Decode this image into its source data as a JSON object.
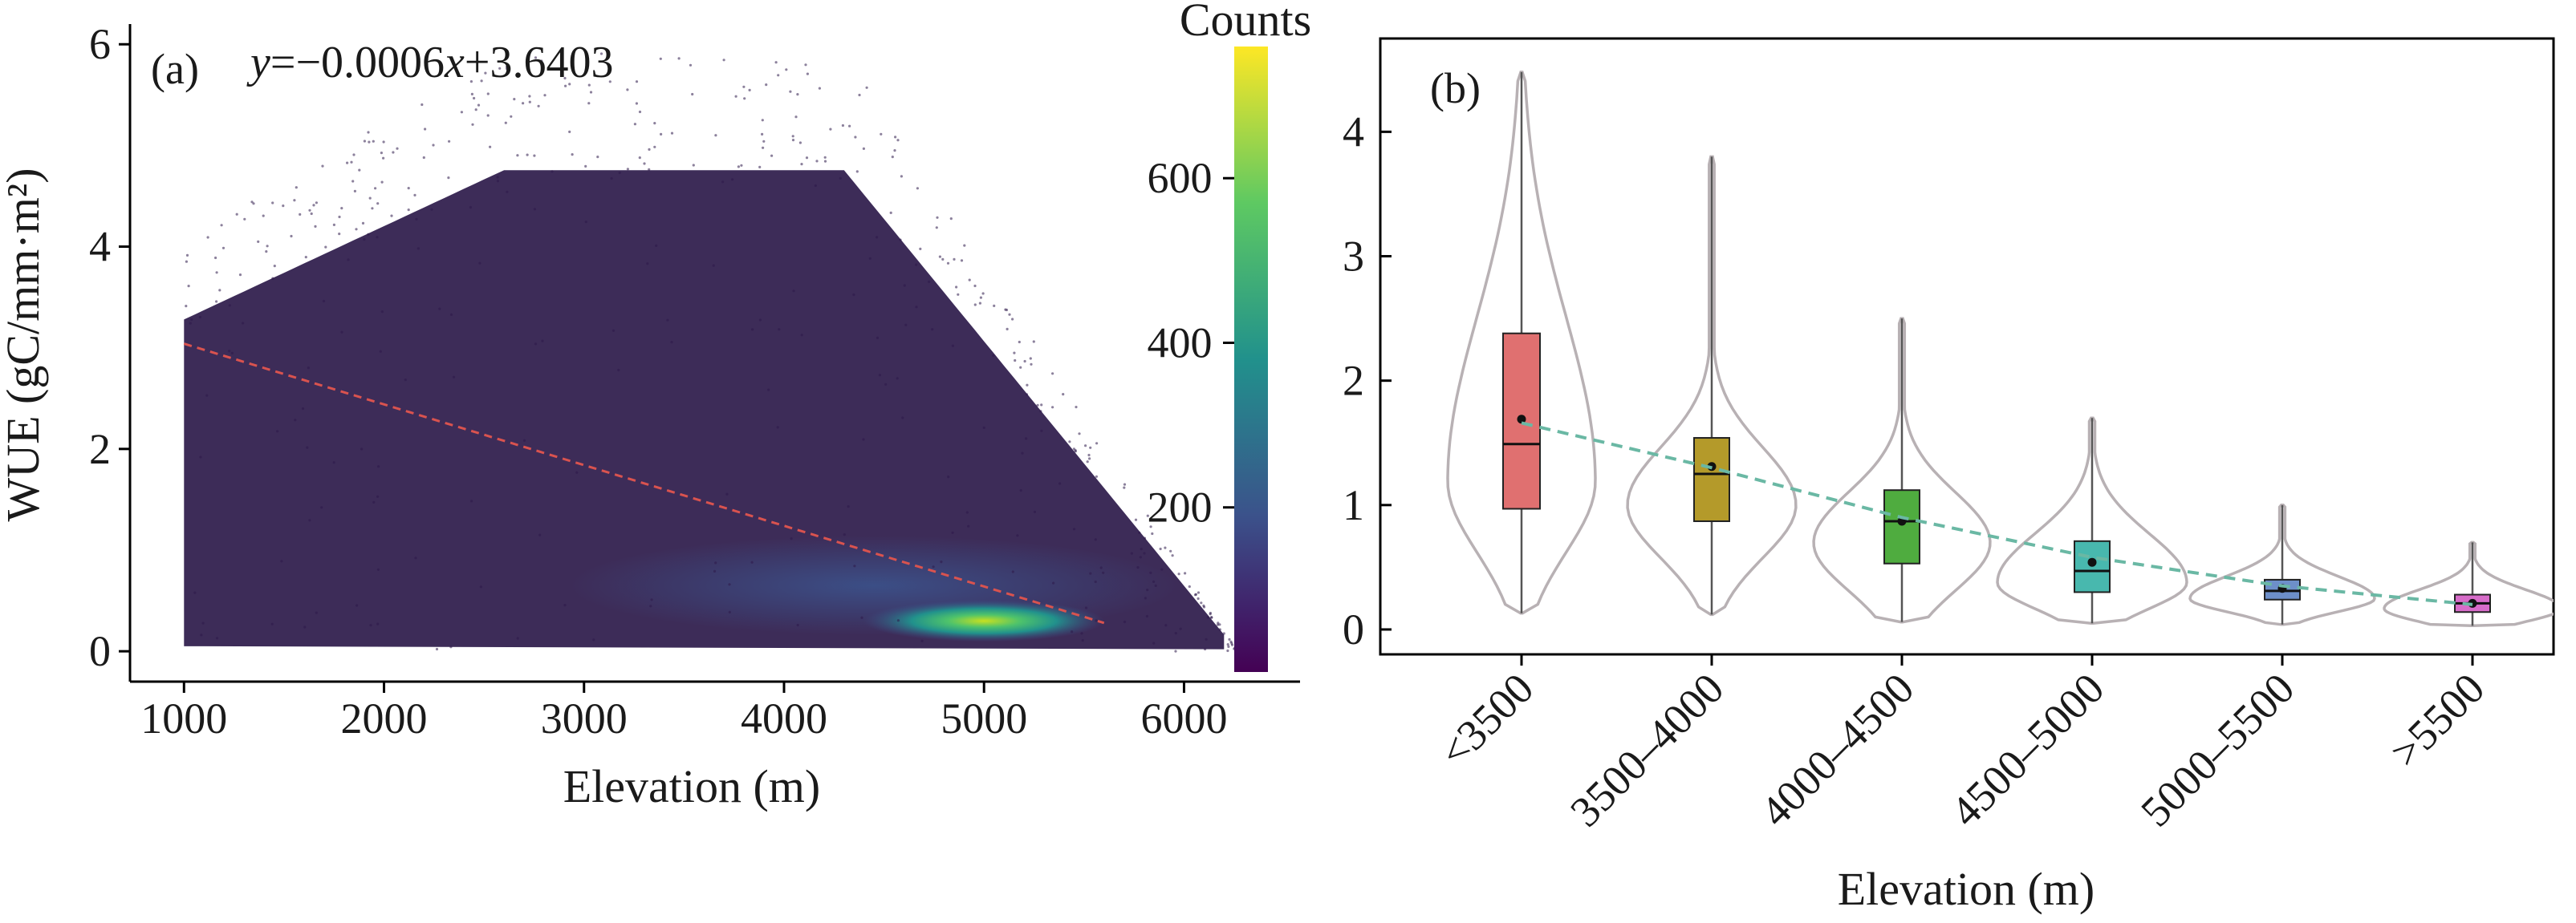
{
  "chart_data": [
    {
      "panel_label": "(a)",
      "type": "scatter",
      "annotation_parts": [
        "y",
        "=−0.0006",
        "x",
        "+3.6403"
      ],
      "xlabel": "Elevation (m)",
      "ylabel": "WUE (gC/mm·m²)",
      "xlim": [
        730,
        6580
      ],
      "ylim": [
        -0.3,
        6.2
      ],
      "xticks": [
        1000,
        2000,
        3000,
        4000,
        5000,
        6000
      ],
      "yticks": [
        0,
        2,
        4,
        6
      ],
      "colorbar": {
        "title": "Counts",
        "ticks": [
          200,
          400,
          600
        ],
        "range": [
          0,
          760
        ],
        "colormap": "viridis"
      },
      "fit_line": {
        "slope": -0.0006,
        "intercept": 3.6403,
        "x_range": [
          1000,
          5600
        ],
        "color": "#d9534f"
      },
      "point_color": "#2d1a4a",
      "density_peak": {
        "x": 5000,
        "y": 0.3
      },
      "grid": false
    },
    {
      "panel_label": "(b)",
      "type": "violin_box",
      "xlabel": "Elevation (m)",
      "categories": [
        "<3500",
        "3500–4000",
        "4000–4500",
        "4500–5000",
        "5000–5500",
        ">5500"
      ],
      "ylim": [
        -0.2,
        4.75
      ],
      "yticks": [
        0,
        1,
        2,
        3,
        4
      ],
      "box_colors": [
        "#e07070",
        "#b49a2a",
        "#4fac3f",
        "#48b8ae",
        "#6d8fc9",
        "#d76cc9"
      ],
      "violin_color": "#b8b1b4",
      "boxes": [
        {
          "min": 0.13,
          "q1": 0.97,
          "median": 1.49,
          "q3": 2.38,
          "max": 4.48,
          "mean": 1.69
        },
        {
          "min": 0.12,
          "q1": 0.87,
          "median": 1.25,
          "q3": 1.54,
          "max": 3.8,
          "mean": 1.31
        },
        {
          "min": 0.06,
          "q1": 0.53,
          "median": 0.87,
          "q3": 1.12,
          "max": 2.5,
          "mean": 0.87
        },
        {
          "min": 0.05,
          "q1": 0.3,
          "median": 0.47,
          "q3": 0.71,
          "max": 1.7,
          "mean": 0.54
        },
        {
          "min": 0.04,
          "q1": 0.24,
          "median": 0.31,
          "q3": 0.4,
          "max": 1.0,
          "mean": 0.33
        },
        {
          "min": 0.03,
          "q1": 0.14,
          "median": 0.21,
          "q3": 0.28,
          "max": 0.7,
          "mean": 0.21
        }
      ],
      "trend_line": {
        "color": "#6ab8a4",
        "style": "dashed",
        "values": [
          1.66,
          1.3,
          0.9,
          0.58,
          0.35,
          0.2
        ]
      },
      "grid": false
    }
  ]
}
